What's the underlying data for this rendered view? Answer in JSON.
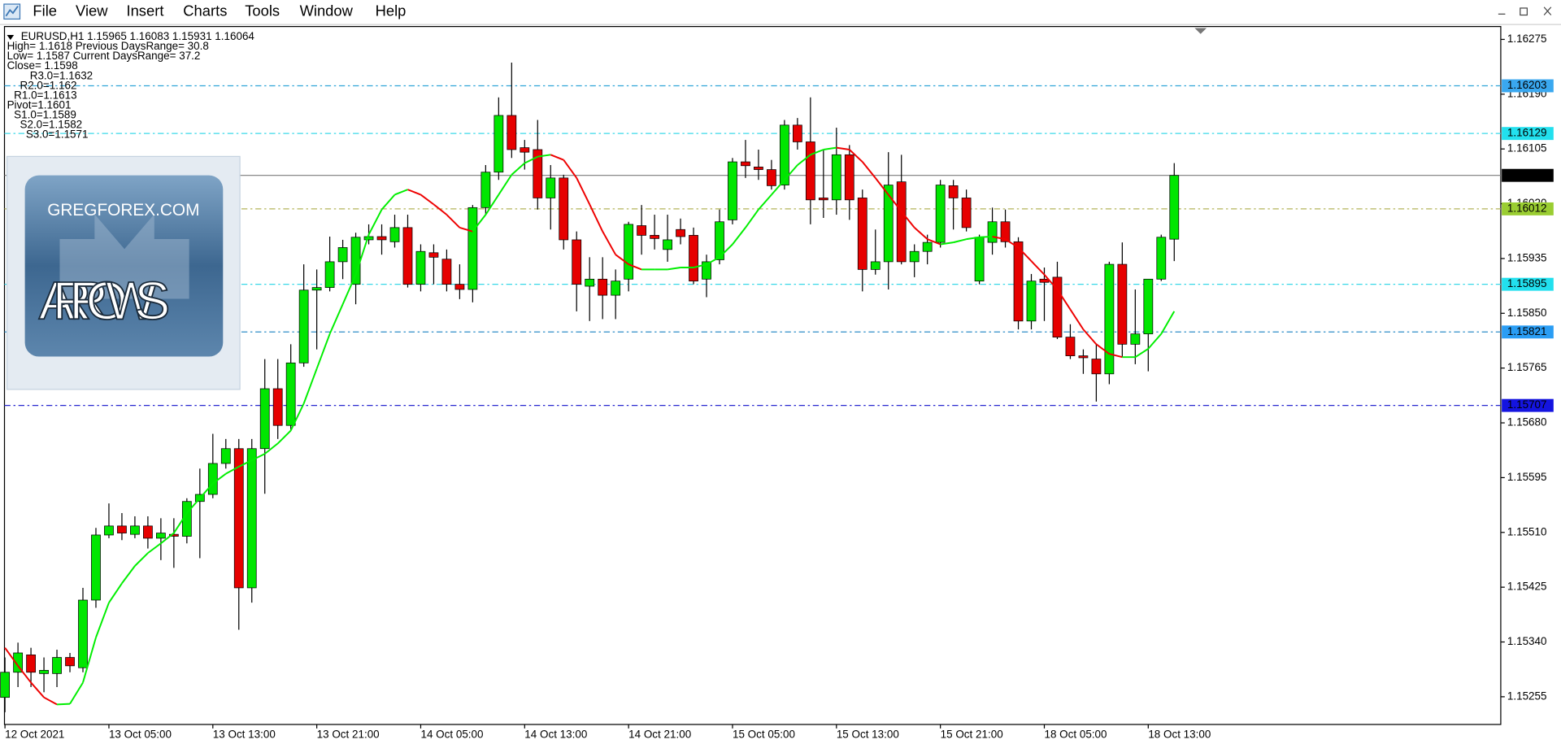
{
  "menu": [
    "File",
    "View",
    "Insert",
    "Charts",
    "Tools",
    "Window",
    "Help"
  ],
  "info": [
    "EURUSD,H1  1.15965 1.16083 1.15931 1.16064",
    "High= 1.1618 Previous DaysRange= 30.8",
    "Low= 1.1587 Current DaysRange= 37.2",
    "Close= 1.1598",
    "R3.0=1.1632",
    "R2.0=1.162",
    "R1.0=1.1613",
    "Pivot=1.1601",
    "S1.0=1.1589",
    "S2.0=1.1582",
    "S3.0=1.1571"
  ],
  "logo": {
    "site": "GREGFOREX.COM",
    "name": "ARROWS"
  },
  "chart_data": {
    "type": "candlestick",
    "up_color": "#00e600",
    "down_color": "#e60000",
    "categories": [
      "12 Oct 2021",
      null,
      null,
      null,
      null,
      null,
      null,
      null,
      "13 Oct 05:00",
      null,
      null,
      null,
      null,
      null,
      null,
      null,
      "13 Oct 13:00",
      null,
      null,
      null,
      null,
      null,
      null,
      null,
      "13 Oct 21:00",
      null,
      null,
      null,
      null,
      null,
      null,
      null,
      "14 Oct 05:00",
      null,
      null,
      null,
      null,
      null,
      null,
      null,
      "14 Oct 13:00",
      null,
      null,
      null,
      null,
      null,
      null,
      null,
      "14 Oct 21:00",
      null,
      null,
      null,
      null,
      null,
      null,
      null,
      "15 Oct 05:00",
      null,
      null,
      null,
      null,
      null,
      null,
      null,
      "15 Oct 13:00",
      null,
      null,
      null,
      null,
      null,
      null,
      null,
      "15 Oct 21:00",
      null,
      null,
      null,
      null,
      null,
      null,
      null,
      "18 Oct 05:00",
      null,
      null,
      null,
      null,
      null,
      null,
      null,
      "18 Oct 13:00",
      null,
      null
    ],
    "open": [
      1.15254,
      1.15293,
      1.1532,
      1.15291,
      1.15291,
      1.15316,
      1.153,
      1.15405,
      1.15506,
      1.1552,
      1.15507,
      1.1552,
      1.15501,
      1.15507,
      1.15504,
      1.15558,
      1.15569,
      1.15617,
      1.1564,
      1.15424,
      1.1564,
      1.15733,
      1.15676,
      1.15773,
      1.15886,
      1.1589,
      1.1593,
      1.15895,
      1.15964,
      1.15969,
      1.15961,
      1.15983,
      1.15895,
      1.15944,
      1.15934,
      1.15895,
      1.15887,
      1.16014,
      1.16069,
      1.16157,
      1.16107,
      1.16104,
      1.16029,
      1.1606,
      1.15964,
      1.15892,
      1.15903,
      1.15878,
      1.15903,
      1.15986,
      1.15971,
      1.15949,
      1.1598,
      1.15971,
      1.15903,
      1.15933,
      1.15995,
      1.16085,
      1.16077,
      1.16073,
      1.16049,
      1.16142,
      1.16116,
      1.16029,
      1.16026,
      1.16096,
      1.16029,
      1.15918,
      1.1593,
      1.16054,
      1.1593,
      1.15946,
      1.1596,
      1.16048,
      1.16029,
      1.159,
      1.1596,
      1.15992,
      1.15961,
      1.15838,
      1.15903,
      1.15906,
      1.15813,
      1.15784,
      1.15779,
      1.15756,
      1.15926,
      1.15802,
      1.15818,
      1.15903,
      1.15965
    ],
    "high": [
      1.15316,
      1.15339,
      1.15331,
      1.15316,
      1.15328,
      1.15323,
      1.15424,
      1.15517,
      1.15555,
      1.1554,
      1.15535,
      1.15535,
      1.15532,
      1.15532,
      1.15563,
      1.15609,
      1.15663,
      1.15655,
      1.15655,
      1.15655,
      1.15779,
      1.15779,
      1.15802,
      1.15926,
      1.15918,
      1.15969,
      1.15964,
      1.15975,
      1.15988,
      1.15988,
      1.16003,
      1.16003,
      1.15957,
      1.15957,
      1.15949,
      1.15926,
      1.16018,
      1.1608,
      1.16185,
      1.16239,
      1.16119,
      1.1615,
      1.1608,
      1.16065,
      1.15977,
      1.15937,
      1.15937,
      1.15918,
      1.15992,
      1.16018,
      1.16003,
      1.16003,
      1.15997,
      1.15983,
      1.15941,
      1.16011,
      1.16091,
      1.16119,
      1.16104,
      1.16088,
      1.1615,
      1.16153,
      1.16185,
      1.16104,
      1.16138,
      1.16111,
      1.16042,
      1.1598,
      1.161,
      1.16096,
      1.15957,
      1.15972,
      1.16057,
      1.16057,
      1.16042,
      1.15972,
      1.16014,
      1.16011,
      1.15968,
      1.15911,
      1.15921,
      1.1593,
      1.15833,
      1.15794,
      1.15802,
      1.1593,
      1.1596,
      1.15887,
      1.15903,
      1.15972,
      1.16083
    ],
    "low": [
      1.15231,
      1.1527,
      1.1527,
      1.15262,
      1.1527,
      1.15293,
      1.15293,
      1.15393,
      1.15501,
      1.15498,
      1.15501,
      1.15485,
      1.15467,
      1.15455,
      1.15493,
      1.1547,
      1.15563,
      1.15609,
      1.15359,
      1.15401,
      1.1557,
      1.15655,
      1.15668,
      1.15767,
      1.15794,
      1.15884,
      1.15903,
      1.15864,
      1.15957,
      1.15941,
      1.15952,
      1.1589,
      1.15884,
      1.15895,
      1.15884,
      1.15872,
      1.15867,
      1.16003,
      1.16057,
      1.16091,
      1.16073,
      1.16011,
      1.1598,
      1.15949,
      1.15853,
      1.15838,
      1.15841,
      1.15841,
      1.15884,
      1.15941,
      1.15949,
      1.1593,
      1.15957,
      1.15895,
      1.15875,
      1.15926,
      1.15988,
      1.1606,
      1.16057,
      1.16042,
      1.16042,
      1.16104,
      1.15988,
      1.15998,
      1.16003,
      1.15995,
      1.15884,
      1.1591,
      1.15887,
      1.15926,
      1.15906,
      1.15926,
      1.15952,
      1.1598,
      1.15977,
      1.15895,
      1.15941,
      1.15952,
      1.15825,
      1.15825,
      1.15838,
      1.1581,
      1.15779,
      1.15756,
      1.15713,
      1.1574,
      1.15782,
      1.15771,
      1.1576,
      1.159,
      1.15931
    ],
    "close": [
      1.15293,
      1.15323,
      1.15293,
      1.15296,
      1.15316,
      1.15303,
      1.15405,
      1.15506,
      1.1552,
      1.15509,
      1.1552,
      1.15501,
      1.15509,
      1.15504,
      1.15558,
      1.15569,
      1.15617,
      1.1564,
      1.15424,
      1.1564,
      1.15733,
      1.15676,
      1.15773,
      1.15886,
      1.1589,
      1.1593,
      1.15952,
      1.15968,
      1.15969,
      1.15964,
      1.15983,
      1.15895,
      1.15946,
      1.15937,
      1.15895,
      1.15887,
      1.16014,
      1.16069,
      1.16157,
      1.16104,
      1.161,
      1.16029,
      1.1606,
      1.15964,
      1.15895,
      1.15903,
      1.15878,
      1.159,
      1.15988,
      1.15971,
      1.15966,
      1.15964,
      1.15969,
      1.159,
      1.1593,
      1.15992,
      1.16085,
      1.16079,
      1.16073,
      1.16048,
      1.16142,
      1.16116,
      1.16026,
      1.16026,
      1.16096,
      1.16026,
      1.15918,
      1.1593,
      1.16049,
      1.1593,
      1.15946,
      1.1596,
      1.16049,
      1.16029,
      1.15983,
      1.15968,
      1.15992,
      1.15961,
      1.15838,
      1.159,
      1.15898,
      1.15813,
      1.15784,
      1.15781,
      1.15756,
      1.15926,
      1.15802,
      1.15818,
      1.15903,
      1.15968,
      1.16064
    ],
    "ma": {
      "up_color": "#00ee00",
      "down_color": "#ee0000",
      "values": [
        1.15331,
        1.15303,
        1.15277,
        1.15254,
        1.15243,
        1.15244,
        1.15277,
        1.15347,
        1.15401,
        1.15431,
        1.15458,
        1.15478,
        1.15493,
        1.15509,
        1.1554,
        1.15563,
        1.15586,
        1.15601,
        1.15612,
        1.15622,
        1.15632,
        1.15648,
        1.15668,
        1.1571,
        1.15764,
        1.15818,
        1.15864,
        1.1591,
        1.15972,
        1.16011,
        1.16034,
        1.16042,
        1.16034,
        1.16019,
        1.16003,
        1.15983,
        1.15977,
        1.16003,
        1.16034,
        1.16065,
        1.16083,
        1.16093,
        1.16096,
        1.16088,
        1.1606,
        1.16019,
        1.15977,
        1.15941,
        1.15926,
        1.15918,
        1.15918,
        1.15918,
        1.15921,
        1.15921,
        1.15926,
        1.15937,
        1.15957,
        1.15983,
        1.16011,
        1.16034,
        1.16057,
        1.1608,
        1.16096,
        1.16104,
        1.16107,
        1.16104,
        1.16085,
        1.1606,
        1.16034,
        1.16008,
        1.15983,
        1.15965,
        1.15957,
        1.1596,
        1.15965,
        1.15968,
        1.15969,
        1.15965,
        1.15952,
        1.15931,
        1.1591,
        1.15887,
        1.15856,
        1.15825,
        1.15802,
        1.15787,
        1.15782,
        1.15782,
        1.15795,
        1.15818,
        1.15853
      ]
    },
    "levels": [
      {
        "value": 1.16203,
        "color": "#2fa4d8",
        "label_bg": "#3aa8f0",
        "dash": "6 3 2 3"
      },
      {
        "value": 1.16129,
        "color": "#38d8e8",
        "label_bg": "#22e0ee",
        "dash": "6 3 2 3"
      },
      {
        "value": 1.16064,
        "color": "#7a7a7a",
        "label_bg": "#000000",
        "dash": "none"
      },
      {
        "value": 1.16012,
        "color": "#b4b45a",
        "label_bg": "#9acd32",
        "dash": "6 3 2 3"
      },
      {
        "value": 1.15895,
        "color": "#38d8e8",
        "label_bg": "#22e0ee",
        "dash": "6 3 2 3"
      },
      {
        "value": 1.15821,
        "color": "#2f8fc8",
        "label_bg": "#2a9df4",
        "dash": "6 3 2 3"
      },
      {
        "value": 1.15707,
        "color": "#2a2ad0",
        "label_bg": "#1414e0",
        "dash": "6 3 2 3"
      }
    ],
    "ylim": [
      1.15212,
      1.16295
    ],
    "yticks": [
      1.16275,
      {
        "value": 1.1619,
        "label": "1.16190"
      },
      1.16105,
      {
        "value": 1.1602,
        "label": "1.16020"
      },
      1.15935,
      {
        "value": 1.1585,
        "label": "1.15850"
      },
      1.15765,
      {
        "value": 1.1568,
        "label": "1.15680"
      },
      1.15595,
      {
        "value": 1.1551,
        "label": "1.15510"
      },
      1.15425,
      {
        "value": 1.1534,
        "label": "1.15340"
      },
      1.15255
    ]
  }
}
